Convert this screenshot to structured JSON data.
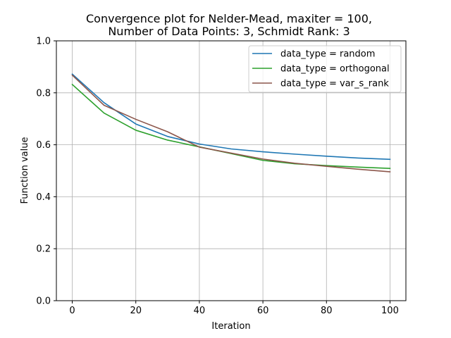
{
  "chart_data": {
    "type": "line",
    "title_line1": "Convergence plot for Nelder-Mead, maxiter = 100,",
    "title_line2": "Number of Data Points: 3, Schmidt Rank: 3",
    "xlabel": "Iteration",
    "ylabel": "Function value",
    "xlim": [
      -5,
      105
    ],
    "ylim": [
      0,
      1.0
    ],
    "xticks": [
      0,
      20,
      40,
      60,
      80,
      100
    ],
    "yticks": [
      0.0,
      0.2,
      0.4,
      0.6,
      0.8,
      1.0
    ],
    "xtick_labels": [
      "0",
      "20",
      "40",
      "60",
      "80",
      "100"
    ],
    "ytick_labels": [
      "0.0",
      "0.2",
      "0.4",
      "0.6",
      "0.8",
      "1.0"
    ],
    "grid": true,
    "legend_position": "top-right",
    "x": [
      0,
      10,
      20,
      30,
      40,
      50,
      60,
      70,
      80,
      90,
      100
    ],
    "series": [
      {
        "name": "data_type = random",
        "color": "#1f77b4",
        "values": [
          0.872,
          0.762,
          0.68,
          0.632,
          0.603,
          0.584,
          0.573,
          0.564,
          0.556,
          0.549,
          0.544
        ]
      },
      {
        "name": "data_type = orthogonal",
        "color": "#2ca02c",
        "values": [
          0.832,
          0.722,
          0.656,
          0.618,
          0.592,
          0.566,
          0.54,
          0.527,
          0.52,
          0.514,
          0.509
        ]
      },
      {
        "name": "data_type = var_s_rank",
        "color": "#8c564b",
        "values": [
          0.868,
          0.752,
          0.698,
          0.65,
          0.591,
          0.568,
          0.545,
          0.529,
          0.517,
          0.506,
          0.496
        ]
      }
    ]
  }
}
